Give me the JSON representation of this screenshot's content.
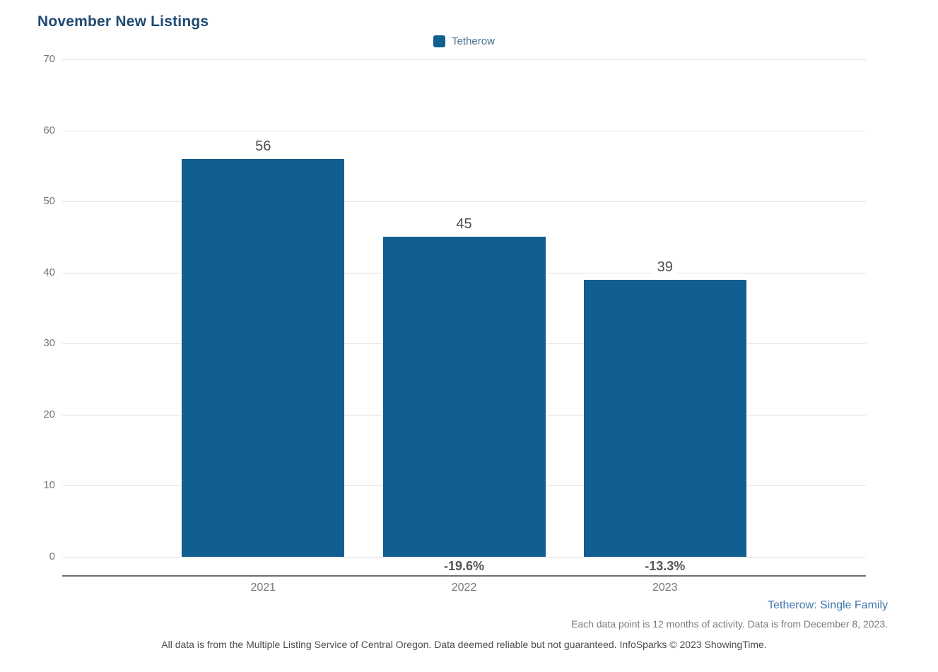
{
  "title": "November New Listings",
  "legend": {
    "label": "Tetherow",
    "swatch_color": "#115e91"
  },
  "chart_data": {
    "type": "bar",
    "title": "November New Listings",
    "series": [
      {
        "name": "Tetherow",
        "values": [
          56,
          45,
          39
        ]
      }
    ],
    "categories": [
      "2021",
      "2022",
      "2023"
    ],
    "value_labels": [
      "56",
      "45",
      "39"
    ],
    "pct_change_labels": [
      "",
      "-19.6%",
      "-13.3%"
    ],
    "xlabel": "",
    "ylabel": "",
    "ylim": [
      0,
      70
    ],
    "yticks": [
      0,
      10,
      20,
      30,
      40,
      50,
      60,
      70
    ],
    "grid": "horizontal",
    "legend_position": "top-center",
    "bar_color": "#115e91"
  },
  "footnotes": {
    "segment": "Tetherow: Single Family",
    "data_note": "Each data point is 12 months of activity. Data is from December 8, 2023.",
    "disclaimer": "All data is from the Multiple Listing Service of Central Oregon. Data deemed reliable but not guaranteed. InfoSparks © 2023 ShowingTime."
  },
  "colors": {
    "bar": "#115e91",
    "title": "#1e4a73",
    "gridline": "#e2e2e2",
    "axis_line": "#6e6e6e",
    "tick_text": "#757575",
    "value_text": "#4d4d4d",
    "pct_text": "#555555",
    "segment_link": "#4077ad"
  }
}
